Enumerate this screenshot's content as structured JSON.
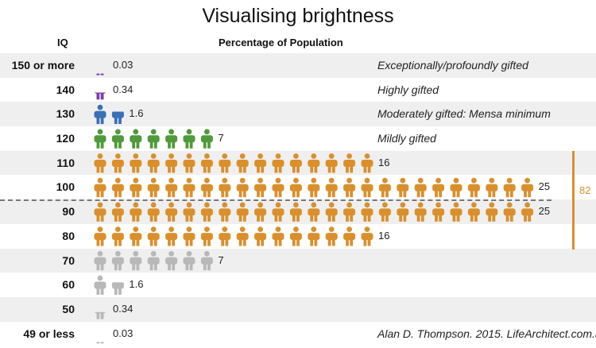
{
  "title": "Visualising brightness",
  "header": {
    "iq": "IQ",
    "pct": "Percentage of Population"
  },
  "bracket_label": "82",
  "colors": {
    "gifted_top": "#7b3fa8",
    "gifted_high": "#3a6fb5",
    "gifted_mild": "#4f9a3a",
    "average": "#d9902c",
    "below": "#b8b8b8"
  },
  "chart_data": {
    "type": "pictogram",
    "title": "Visualising brightness",
    "xlabel": "Percentage of Population",
    "ylabel": "IQ",
    "rows": [
      {
        "iq": "150 or more",
        "value": 0.03,
        "label": "0.03",
        "note": "Exceptionally/profoundly gifted",
        "color": "#7b3fa8"
      },
      {
        "iq": "140",
        "value": 0.34,
        "label": "0.34",
        "note": "Highly gifted",
        "color": "#7b3fa8"
      },
      {
        "iq": "130",
        "value": 1.6,
        "label": "1.6",
        "note": "Moderately gifted: Mensa minimum",
        "color": "#3a6fb5"
      },
      {
        "iq": "120",
        "value": 7,
        "label": "7",
        "note": "Mildly gifted",
        "color": "#4f9a3a"
      },
      {
        "iq": "110",
        "value": 16,
        "label": "16",
        "note": "",
        "color": "#d9902c"
      },
      {
        "iq": "100",
        "value": 25,
        "label": "25",
        "note": "",
        "color": "#d9902c"
      },
      {
        "iq": "90",
        "value": 25,
        "label": "25",
        "note": "",
        "color": "#d9902c"
      },
      {
        "iq": "80",
        "value": 16,
        "label": "16",
        "note": "",
        "color": "#d9902c"
      },
      {
        "iq": "70",
        "value": 7,
        "label": "7",
        "note": "",
        "color": "#b8b8b8"
      },
      {
        "iq": "60",
        "value": 1.6,
        "label": "1.6",
        "note": "",
        "color": "#b8b8b8"
      },
      {
        "iq": "50",
        "value": 0.34,
        "label": "0.34",
        "note": "",
        "color": "#b8b8b8"
      },
      {
        "iq": "49 or less",
        "value": 0.03,
        "label": "0.03",
        "note": "Alan D. Thompson. 2015. LifeArchitect.com.au",
        "color": "#b8b8b8"
      }
    ]
  }
}
